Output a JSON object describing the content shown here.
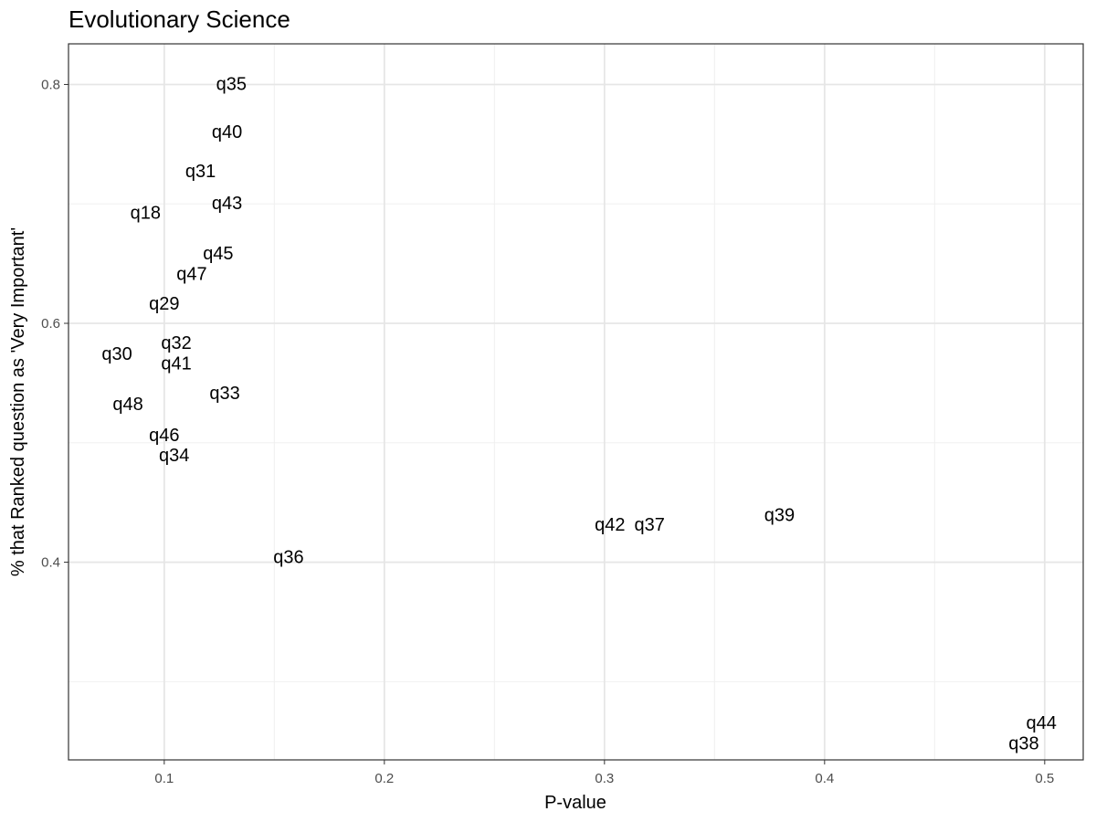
{
  "chart_data": {
    "type": "scatter",
    "title": "Evolutionary Science",
    "xlabel": "P-value",
    "ylabel": "% that Ranked question as 'Very Important'",
    "xlim": [
      0.0565,
      0.5175
    ],
    "ylim": [
      0.2345,
      0.834
    ],
    "x_major_ticks": [
      0.1,
      0.2,
      0.3,
      0.4,
      0.5
    ],
    "x_tick_labels": [
      "0.1",
      "0.2",
      "0.3",
      "0.4",
      "0.5"
    ],
    "x_minor_ticks": [
      0.15,
      0.25,
      0.35,
      0.45
    ],
    "y_major_ticks": [
      0.4,
      0.6,
      0.8
    ],
    "y_tick_labels": [
      "0.4",
      "0.6",
      "0.8"
    ],
    "y_minor_ticks": [
      0.3,
      0.5,
      0.7
    ],
    "grid": true,
    "legend": "none",
    "points": [
      {
        "label": "q35",
        "x": 0.1305,
        "y": 0.8
      },
      {
        "label": "q40",
        "x": 0.1285,
        "y": 0.76
      },
      {
        "label": "q31",
        "x": 0.1165,
        "y": 0.727
      },
      {
        "label": "q43",
        "x": 0.1285,
        "y": 0.7
      },
      {
        "label": "q18",
        "x": 0.0915,
        "y": 0.692
      },
      {
        "label": "q45",
        "x": 0.1245,
        "y": 0.658
      },
      {
        "label": "q47",
        "x": 0.1125,
        "y": 0.641
      },
      {
        "label": "q29",
        "x": 0.1,
        "y": 0.616
      },
      {
        "label": "q30",
        "x": 0.0785,
        "y": 0.574
      },
      {
        "label": "q32",
        "x": 0.1055,
        "y": 0.583
      },
      {
        "label": "q41",
        "x": 0.1055,
        "y": 0.566
      },
      {
        "label": "q33",
        "x": 0.1275,
        "y": 0.541
      },
      {
        "label": "q48",
        "x": 0.0835,
        "y": 0.532
      },
      {
        "label": "q46",
        "x": 0.1,
        "y": 0.506
      },
      {
        "label": "q34",
        "x": 0.1045,
        "y": 0.489
      },
      {
        "label": "q36",
        "x": 0.1565,
        "y": 0.404
      },
      {
        "label": "q42",
        "x": 0.3025,
        "y": 0.431
      },
      {
        "label": "q37",
        "x": 0.3205,
        "y": 0.431
      },
      {
        "label": "q39",
        "x": 0.3795,
        "y": 0.439
      },
      {
        "label": "q44",
        "x": 0.4985,
        "y": 0.265
      },
      {
        "label": "q38",
        "x": 0.4905,
        "y": 0.248
      }
    ]
  }
}
